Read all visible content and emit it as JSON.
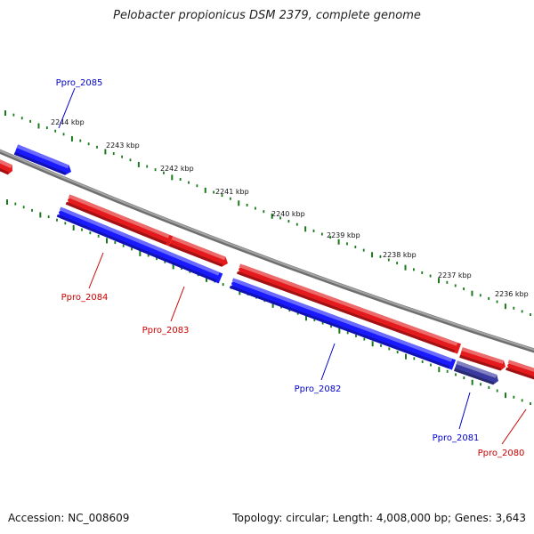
{
  "title": "Pelobacter propionicus DSM 2379, complete genome",
  "footer": {
    "accession_label": "Accession:",
    "accession": "NC_008609",
    "topology_label": "Topology:",
    "topology": "circular",
    "length_label": "Length:",
    "length": "4,008,000 bp",
    "genes_label": "Genes:",
    "genes": "3,643"
  },
  "colors": {
    "forward_strand": "#e41a1c",
    "reverse_strand": "#1a1aff",
    "backbone": "#808080",
    "tick": "#1a7a1a",
    "label_forward": "#cc0000",
    "label_reverse": "#0000cc"
  },
  "ticks": {
    "unit": "kbp",
    "labels": [
      "2244 kbp",
      "2243 kbp",
      "2242 kbp",
      "2241 kbp",
      "2240 kbp",
      "2239 kbp",
      "2238 kbp",
      "2237 kbp",
      "2236 kbp"
    ]
  },
  "genes": [
    {
      "name": "Ppro_2085",
      "strand": "reverse"
    },
    {
      "name": "Ppro_2084",
      "strand": "forward"
    },
    {
      "name": "Ppro_2083",
      "strand": "forward"
    },
    {
      "name": "Ppro_2082",
      "strand": "reverse"
    },
    {
      "name": "Ppro_2081",
      "strand": "reverse"
    },
    {
      "name": "Ppro_2080",
      "strand": "forward"
    }
  ]
}
